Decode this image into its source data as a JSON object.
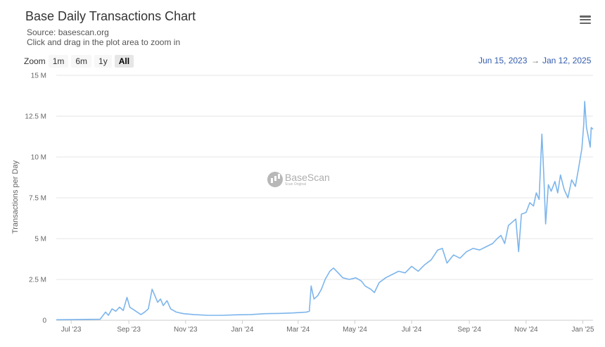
{
  "header": {
    "title": "Base Daily Transactions Chart",
    "source": "Source: basescan.org",
    "hint": "Click and drag in the plot area to zoom in"
  },
  "menu": {
    "icon": "hamburger-menu-icon"
  },
  "zoom": {
    "label": "Zoom",
    "buttons": [
      "1m",
      "6m",
      "1y",
      "All"
    ],
    "active": "All"
  },
  "range": {
    "from": "Jun 15, 2023",
    "arrow": "→",
    "to": "Jan 12, 2025"
  },
  "watermark": {
    "title": "BaseScan",
    "sub": "Scan Original"
  },
  "colors": {
    "line": "#7cb5ec",
    "grid": "#e6e6e6",
    "range_text": "#335cad"
  },
  "chart_data": {
    "type": "line",
    "ylabel": "Transactions per Day",
    "ylim": [
      0,
      15000000
    ],
    "yticks": [
      0,
      2500000,
      5000000,
      7500000,
      10000000,
      12500000,
      15000000
    ],
    "ytick_labels": [
      "0",
      "2.5 M",
      "5 M",
      "7.5 M",
      "10 M",
      "12.5 M",
      "15 M"
    ],
    "xlim": [
      "2023-06-15",
      "2025-01-12"
    ],
    "xticks": [
      "2023-07-01",
      "2023-09-01",
      "2023-11-01",
      "2024-01-01",
      "2024-03-01",
      "2024-05-01",
      "2024-07-01",
      "2024-09-01",
      "2024-11-01",
      "2025-01-01"
    ],
    "xtick_labels": [
      "Jul '23",
      "Sep '23",
      "Nov '23",
      "Jan '24",
      "Mar '24",
      "May '24",
      "Jul '24",
      "Sep '24",
      "Nov '24",
      "Jan '25"
    ],
    "grid": true,
    "series": [
      {
        "points": [
          [
            "2023-06-15",
            30000
          ],
          [
            "2023-07-01",
            40000
          ],
          [
            "2023-07-15",
            50000
          ],
          [
            "2023-08-01",
            60000
          ],
          [
            "2023-08-07",
            500000
          ],
          [
            "2023-08-10",
            300000
          ],
          [
            "2023-08-14",
            700000
          ],
          [
            "2023-08-18",
            550000
          ],
          [
            "2023-08-22",
            800000
          ],
          [
            "2023-08-26",
            600000
          ],
          [
            "2023-08-30",
            1400000
          ],
          [
            "2023-09-02",
            800000
          ],
          [
            "2023-09-06",
            650000
          ],
          [
            "2023-09-10",
            500000
          ],
          [
            "2023-09-14",
            350000
          ],
          [
            "2023-09-18",
            500000
          ],
          [
            "2023-09-22",
            700000
          ],
          [
            "2023-09-26",
            1900000
          ],
          [
            "2023-09-29",
            1500000
          ],
          [
            "2023-10-02",
            1100000
          ],
          [
            "2023-10-05",
            1300000
          ],
          [
            "2023-10-08",
            900000
          ],
          [
            "2023-10-12",
            1200000
          ],
          [
            "2023-10-16",
            700000
          ],
          [
            "2023-10-22",
            500000
          ],
          [
            "2023-10-30",
            400000
          ],
          [
            "2023-11-10",
            350000
          ],
          [
            "2023-11-25",
            300000
          ],
          [
            "2023-12-10",
            300000
          ],
          [
            "2023-12-25",
            330000
          ],
          [
            "2024-01-10",
            350000
          ],
          [
            "2024-01-25",
            400000
          ],
          [
            "2024-02-10",
            420000
          ],
          [
            "2024-02-25",
            450000
          ],
          [
            "2024-03-10",
            500000
          ],
          [
            "2024-03-13",
            550000
          ],
          [
            "2024-03-15",
            2100000
          ],
          [
            "2024-03-18",
            1300000
          ],
          [
            "2024-03-22",
            1500000
          ],
          [
            "2024-03-26",
            1900000
          ],
          [
            "2024-03-30",
            2500000
          ],
          [
            "2024-04-04",
            3000000
          ],
          [
            "2024-04-08",
            3200000
          ],
          [
            "2024-04-13",
            2900000
          ],
          [
            "2024-04-18",
            2600000
          ],
          [
            "2024-04-25",
            2500000
          ],
          [
            "2024-05-02",
            2600000
          ],
          [
            "2024-05-08",
            2400000
          ],
          [
            "2024-05-12",
            2100000
          ],
          [
            "2024-05-18",
            1900000
          ],
          [
            "2024-05-22",
            1700000
          ],
          [
            "2024-05-27",
            2300000
          ],
          [
            "2024-06-03",
            2600000
          ],
          [
            "2024-06-10",
            2800000
          ],
          [
            "2024-06-17",
            3000000
          ],
          [
            "2024-06-24",
            2900000
          ],
          [
            "2024-07-01",
            3300000
          ],
          [
            "2024-07-08",
            3000000
          ],
          [
            "2024-07-15",
            3400000
          ],
          [
            "2024-07-22",
            3700000
          ],
          [
            "2024-07-29",
            4300000
          ],
          [
            "2024-08-03",
            4400000
          ],
          [
            "2024-08-08",
            3500000
          ],
          [
            "2024-08-15",
            4000000
          ],
          [
            "2024-08-22",
            3800000
          ],
          [
            "2024-08-29",
            4200000
          ],
          [
            "2024-09-05",
            4400000
          ],
          [
            "2024-09-12",
            4300000
          ],
          [
            "2024-09-19",
            4500000
          ],
          [
            "2024-09-26",
            4700000
          ],
          [
            "2024-10-01",
            5000000
          ],
          [
            "2024-10-05",
            5200000
          ],
          [
            "2024-10-09",
            4700000
          ],
          [
            "2024-10-13",
            5800000
          ],
          [
            "2024-10-17",
            6000000
          ],
          [
            "2024-10-21",
            6200000
          ],
          [
            "2024-10-24",
            4200000
          ],
          [
            "2024-10-27",
            6500000
          ],
          [
            "2024-11-01",
            6600000
          ],
          [
            "2024-11-05",
            7200000
          ],
          [
            "2024-11-09",
            7000000
          ],
          [
            "2024-11-12",
            7800000
          ],
          [
            "2024-11-15",
            7400000
          ],
          [
            "2024-11-18",
            11400000
          ],
          [
            "2024-11-20",
            9000000
          ],
          [
            "2024-11-22",
            5900000
          ],
          [
            "2024-11-25",
            8300000
          ],
          [
            "2024-11-28",
            7900000
          ],
          [
            "2024-12-02",
            8500000
          ],
          [
            "2024-12-05",
            7800000
          ],
          [
            "2024-12-08",
            8900000
          ],
          [
            "2024-12-12",
            8000000
          ],
          [
            "2024-12-16",
            7500000
          ],
          [
            "2024-12-20",
            8600000
          ],
          [
            "2024-12-24",
            8200000
          ],
          [
            "2024-12-28",
            9500000
          ],
          [
            "2024-12-31",
            10500000
          ],
          [
            "2025-01-02",
            12000000
          ],
          [
            "2025-01-03",
            13400000
          ],
          [
            "2025-01-05",
            11800000
          ],
          [
            "2025-01-07",
            11200000
          ],
          [
            "2025-01-09",
            10600000
          ],
          [
            "2025-01-10",
            11800000
          ],
          [
            "2025-01-12",
            11700000
          ]
        ]
      }
    ]
  }
}
